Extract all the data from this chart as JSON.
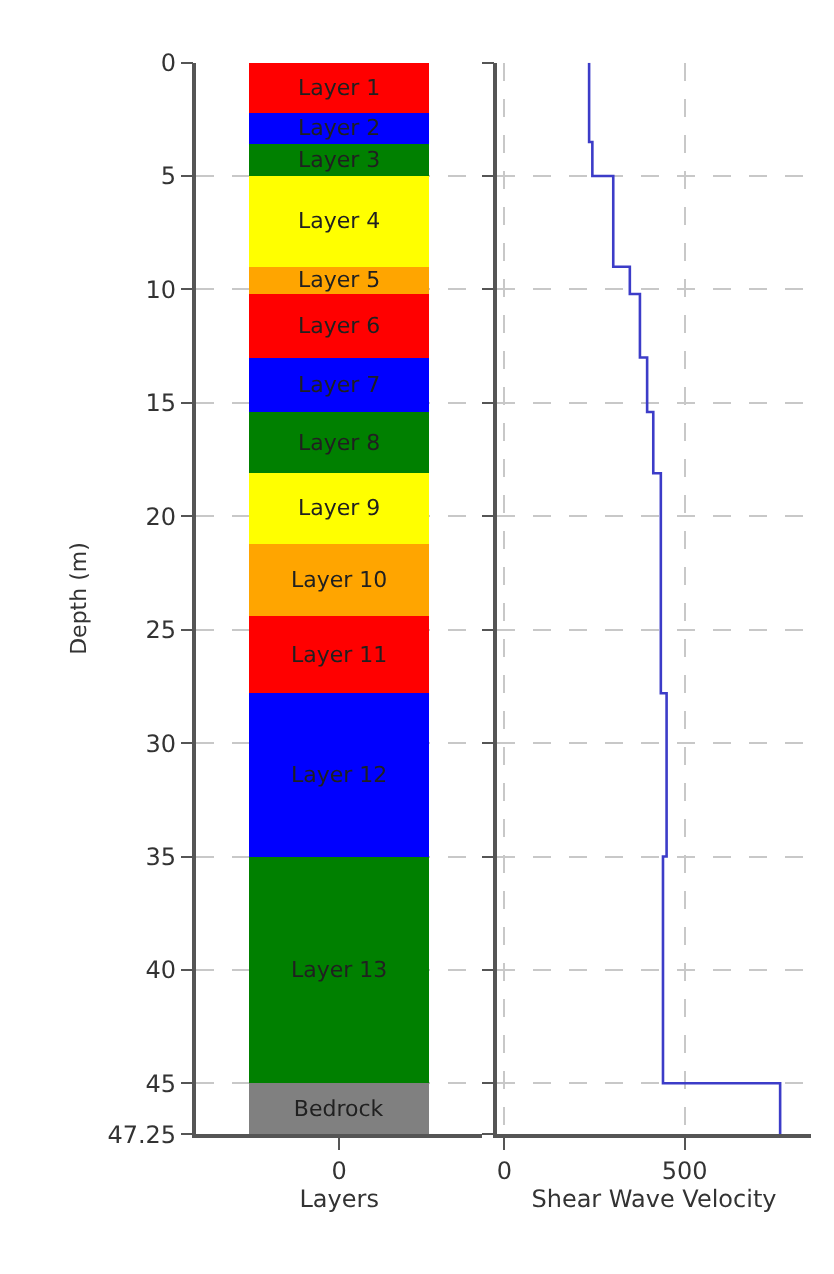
{
  "chart_data": [
    {
      "type": "bar",
      "stacked": true,
      "categories": [
        "0"
      ],
      "xlabel": "Layers",
      "ylabel": "Depth (m)",
      "ylim": [
        47.25,
        0
      ],
      "yticks": [
        0,
        5,
        10,
        15,
        20,
        25,
        30,
        35,
        40,
        45,
        47.25
      ],
      "grid": "y",
      "series": [
        {
          "name": "Layer 1",
          "color": "#ff0000",
          "values": [
            2.2
          ]
        },
        {
          "name": "Layer 2",
          "color": "#0000ff",
          "values": [
            1.4
          ]
        },
        {
          "name": "Layer 3",
          "color": "#008000",
          "values": [
            1.4
          ]
        },
        {
          "name": "Layer 4",
          "color": "#ffff00",
          "values": [
            4
          ]
        },
        {
          "name": "Layer 5",
          "color": "#ffa500",
          "values": [
            1.2
          ]
        },
        {
          "name": "Layer 6",
          "color": "#ff0000",
          "values": [
            2.8
          ]
        },
        {
          "name": "Layer 7",
          "color": "#0000ff",
          "values": [
            2.4
          ]
        },
        {
          "name": "Layer 8",
          "color": "#008000",
          "values": [
            2.7
          ]
        },
        {
          "name": "Layer 9",
          "color": "#ffff00",
          "values": [
            3.1
          ]
        },
        {
          "name": "Layer 10",
          "color": "#ffa500",
          "values": [
            3.2
          ]
        },
        {
          "name": "Layer 11",
          "color": "#ff0000",
          "values": [
            3.4
          ]
        },
        {
          "name": "Layer 12",
          "color": "#0000ff",
          "values": [
            7.2
          ]
        },
        {
          "name": "Layer 13",
          "color": "#008000",
          "values": [
            10
          ]
        },
        {
          "name": "Bedrock",
          "color": "#808080",
          "values": [
            2.25
          ]
        }
      ]
    },
    {
      "type": "line",
      "xlabel": "Shear Wave Velocity",
      "xlim": [
        -20,
        850
      ],
      "xticks": [
        0,
        500
      ],
      "ylim": [
        47.25,
        0
      ],
      "yticks": [
        0,
        5,
        10,
        15,
        20,
        25,
        30,
        35,
        40,
        45,
        47.25
      ],
      "grid": true,
      "tick_labels": "x",
      "marker": "none",
      "line_style": "solid",
      "series": [
        {
          "color": "#3c3cc8",
          "x": [
            235,
            235,
            244,
            244,
            302,
            302,
            348,
            348,
            376,
            376,
            396,
            396,
            413,
            413,
            434,
            434,
            450,
            450,
            440,
            440,
            765,
            765
          ],
          "values": [
            0,
            3.5,
            3.5,
            5,
            5,
            9,
            9,
            10.2,
            10.2,
            13,
            13,
            15.4,
            15.4,
            18.1,
            18.1,
            27.8,
            27.8,
            35,
            35,
            45,
            45,
            47.25
          ]
        }
      ]
    }
  ]
}
